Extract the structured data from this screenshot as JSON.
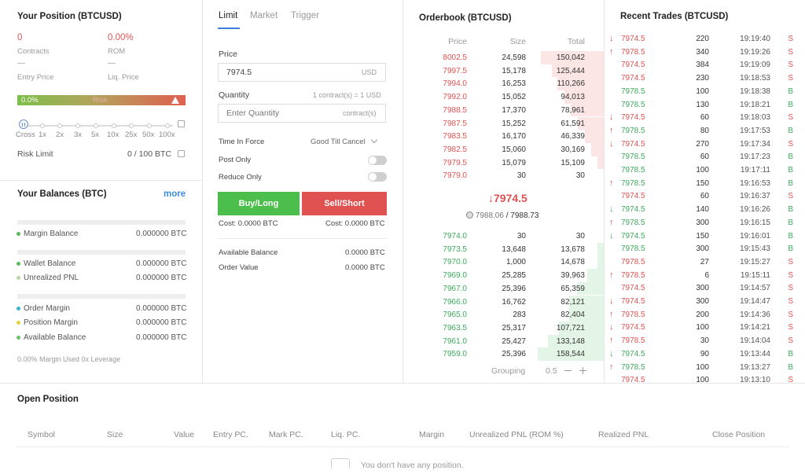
{
  "position": {
    "title": "Your Position (BTCUSD)",
    "contracts_value": "0",
    "contracts_label": "Contracts",
    "rom_value": "0.00%",
    "rom_label": "ROM",
    "entry_value": "—",
    "entry_label": "Entry Price",
    "liq_value": "—",
    "liq_label": "Liq. Price",
    "risk_pct": "0.0%",
    "risk_label": "Risk",
    "leverage_options": [
      "Cross",
      "1x",
      "2x",
      "3x",
      "5x",
      "10x",
      "25x",
      "50x",
      "100x"
    ],
    "risk_limit_label": "Risk Limit",
    "risk_limit_value": "0 / 100 BTC"
  },
  "balances": {
    "title": "Your Balances (BTC)",
    "more_label": "more",
    "margin_balance_label": "Margin Balance",
    "margin_balance_value": "0.000000 BTC",
    "wallet_balance_label": "Wallet Balance",
    "wallet_balance_value": "0.000000 BTC",
    "unrealized_pnl_label": "Unrealized PNL",
    "unrealized_pnl_value": "0.000000 BTC",
    "order_margin_label": "Order Margin",
    "order_margin_value": "0.000000 BTC",
    "position_margin_label": "Position Margin",
    "position_margin_value": "0.000000 BTC",
    "available_balance_label": "Available Balance",
    "available_balance_value": "0.000000 BTC",
    "footer": "0.00% Margin Used 0x Leverage",
    "colors": {
      "margin": "#5cb85c",
      "wallet": "#5cb85c",
      "pnl": "#b5d9a0",
      "order": "#3fb3c9",
      "position": "#e3d43a",
      "available": "#6cc36a"
    }
  },
  "order_form": {
    "tabs": [
      "Limit",
      "Market",
      "Trigger"
    ],
    "price_label": "Price",
    "price_value": "7974.5",
    "price_unit": "USD",
    "quantity_label": "Quantity",
    "quantity_hint": "1 contract(s) = 1 USD",
    "quantity_placeholder": "Enter Quantity",
    "quantity_unit": "contract(s)",
    "tif_label": "Time In Force",
    "tif_value": "Good Till Cancel",
    "post_only_label": "Post Only",
    "reduce_only_label": "Reduce Only",
    "buy_label": "Buy/Long",
    "sell_label": "Sell/Short",
    "buy_cost": "Cost: 0.0000 BTC",
    "sell_cost": "Cost: 0.0000 BTC",
    "available_balance_label": "Available Balance",
    "available_balance_value": "0.0000 BTC",
    "order_value_label": "Order Value",
    "order_value_value": "0.0000 BTC",
    "buy_color": "#4cbe4c",
    "sell_color": "#e05252"
  },
  "orderbook": {
    "title": "Orderbook (BTCUSD)",
    "headers": [
      "Price",
      "Size",
      "Total"
    ],
    "asks": [
      {
        "price": "8002.5",
        "size": "24,598",
        "total": "150,042",
        "depth": 0.95
      },
      {
        "price": "7997.5",
        "size": "15,178",
        "total": "125,444",
        "depth": 0.79
      },
      {
        "price": "7994.0",
        "size": "16,253",
        "total": "110,266",
        "depth": 0.7
      },
      {
        "price": "7992.0",
        "size": "15,052",
        "total": "94,013",
        "depth": 0.59
      },
      {
        "price": "7988.5",
        "size": "17,370",
        "total": "78,961",
        "depth": 0.5
      },
      {
        "price": "7987.5",
        "size": "15,252",
        "total": "61,591",
        "depth": 0.39
      },
      {
        "price": "7983.5",
        "size": "16,170",
        "total": "46,339",
        "depth": 0.29
      },
      {
        "price": "7982.5",
        "size": "15,060",
        "total": "30,169",
        "depth": 0.19
      },
      {
        "price": "7979.5",
        "size": "15,079",
        "total": "15,109",
        "depth": 0.1
      },
      {
        "price": "7979.0",
        "size": "30",
        "total": "30",
        "depth": 0.0
      }
    ],
    "last_price": "↓7974.5",
    "mark_price": "7988.06",
    "index_price": "7988.73",
    "bids": [
      {
        "price": "7974.0",
        "size": "30",
        "total": "30",
        "depth": 0.0
      },
      {
        "price": "7973.5",
        "size": "13,648",
        "total": "13,678",
        "depth": 0.09
      },
      {
        "price": "7970.0",
        "size": "1,000",
        "total": "14,678",
        "depth": 0.09
      },
      {
        "price": "7969.0",
        "size": "25,285",
        "total": "39,963",
        "depth": 0.25
      },
      {
        "price": "7967.0",
        "size": "25,396",
        "total": "65,359",
        "depth": 0.41
      },
      {
        "price": "7966.0",
        "size": "16,762",
        "total": "82,121",
        "depth": 0.52
      },
      {
        "price": "7965.0",
        "size": "283",
        "total": "82,404",
        "depth": 0.52
      },
      {
        "price": "7963.5",
        "size": "25,317",
        "total": "107,721",
        "depth": 0.68
      },
      {
        "price": "7961.0",
        "size": "25,427",
        "total": "133,148",
        "depth": 0.84
      },
      {
        "price": "7959.0",
        "size": "25,396",
        "total": "158,544",
        "depth": 1.0
      }
    ],
    "grouping_label": "Grouping",
    "grouping_value": "0.5"
  },
  "trades": {
    "title": "Recent Trades (BTCUSD)",
    "rows": [
      {
        "dir": "down",
        "price": "7974.5",
        "size": "220",
        "time": "19:19:40",
        "side": "S"
      },
      {
        "dir": "up",
        "price": "7978.5",
        "size": "340",
        "time": "19:19:26",
        "side": "S"
      },
      {
        "dir": "",
        "price": "7974.5",
        "size": "384",
        "time": "19:19:09",
        "side": "S"
      },
      {
        "dir": "",
        "price": "7974.5",
        "size": "230",
        "time": "19:18:53",
        "side": "S"
      },
      {
        "dir": "",
        "price": "7978.5",
        "size": "100",
        "time": "19:18:38",
        "side": "B"
      },
      {
        "dir": "",
        "price": "7978.5",
        "size": "130",
        "time": "19:18:21",
        "side": "B"
      },
      {
        "dir": "down",
        "price": "7974.5",
        "size": "60",
        "time": "19:18:03",
        "side": "S"
      },
      {
        "dir": "up",
        "price": "7978.5",
        "size": "80",
        "time": "19:17:53",
        "side": "B"
      },
      {
        "dir": "down",
        "price": "7974.5",
        "size": "270",
        "time": "19:17:34",
        "side": "S"
      },
      {
        "dir": "",
        "price": "7978.5",
        "size": "60",
        "time": "19:17:23",
        "side": "B"
      },
      {
        "dir": "",
        "price": "7978.5",
        "size": "100",
        "time": "19:17:11",
        "side": "B"
      },
      {
        "dir": "up",
        "price": "7978.5",
        "size": "150",
        "time": "19:16:53",
        "side": "B"
      },
      {
        "dir": "",
        "price": "7974.5",
        "size": "60",
        "time": "19:16:37",
        "side": "S"
      },
      {
        "dir": "down",
        "price": "7974.5",
        "size": "140",
        "time": "19:16:26",
        "side": "B"
      },
      {
        "dir": "up",
        "price": "7978.5",
        "size": "300",
        "time": "19:16:15",
        "side": "B"
      },
      {
        "dir": "down",
        "price": "7974.5",
        "size": "150",
        "time": "19:16:01",
        "side": "B"
      },
      {
        "dir": "",
        "price": "7978.5",
        "size": "300",
        "time": "19:15:43",
        "side": "B"
      },
      {
        "dir": "",
        "price": "7978.5",
        "size": "27",
        "time": "19:15:27",
        "side": "S"
      },
      {
        "dir": "up",
        "price": "7978.5",
        "size": "6",
        "time": "19:15:11",
        "side": "S"
      },
      {
        "dir": "",
        "price": "7974.5",
        "size": "300",
        "time": "19:14:57",
        "side": "S"
      },
      {
        "dir": "down",
        "price": "7974.5",
        "size": "300",
        "time": "19:14:47",
        "side": "S"
      },
      {
        "dir": "up",
        "price": "7978.5",
        "size": "200",
        "time": "19:14:36",
        "side": "S"
      },
      {
        "dir": "down",
        "price": "7974.5",
        "size": "100",
        "time": "19:14:21",
        "side": "S"
      },
      {
        "dir": "up",
        "price": "7978.5",
        "size": "30",
        "time": "19:14:04",
        "side": "S"
      },
      {
        "dir": "down",
        "price": "7974.5",
        "size": "90",
        "time": "19:13:44",
        "side": "B"
      },
      {
        "dir": "up",
        "price": "7978.5",
        "size": "100",
        "time": "19:13:27",
        "side": "B"
      },
      {
        "dir": "",
        "price": "7974.5",
        "size": "100",
        "time": "19:13:10",
        "side": "S"
      }
    ]
  },
  "open_position": {
    "title": "Open Position",
    "columns": [
      "Symbol",
      "Size",
      "Value",
      "Entry PC.",
      "Mark PC.",
      "Liq. PC.",
      "Margin",
      "Unrealized PNL (ROM %)",
      "Realized PNL",
      "Close Position"
    ],
    "empty_text": "You don't have any position.",
    "empty_icon": "inbox-icon"
  }
}
